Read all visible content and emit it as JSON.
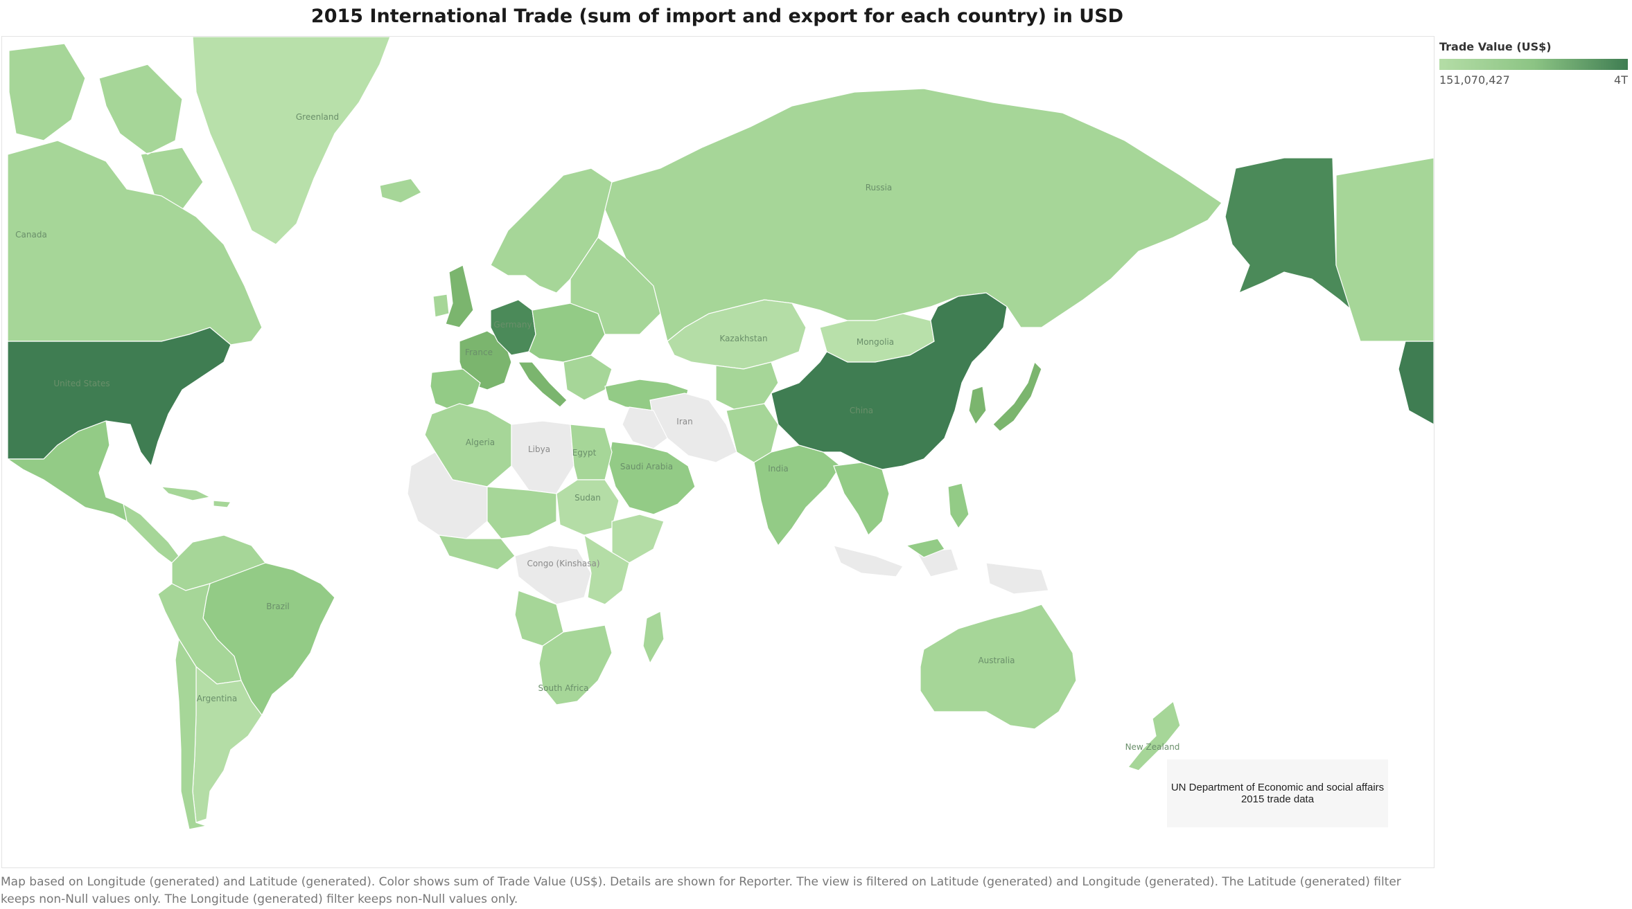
{
  "title": "2015 International Trade (sum of import and export for each country) in USD",
  "legend": {
    "title": "Trade Value (US$)",
    "min_label": "151,070,427",
    "max_label": "4T",
    "color_low": "#b4dda6",
    "color_high": "#3f7d52"
  },
  "colors": {
    "no_data": "#eaeaea",
    "low": "#a6d698",
    "low_mid": "#93cb86",
    "mid": "#7bb56e",
    "high": "#4b8a59",
    "top": "#3f7d52"
  },
  "map_labels": {
    "greenland": "Greenland",
    "canada": "Canada",
    "united_states": "United States",
    "russia": "Russia",
    "kazakhstan": "Kazakhstan",
    "mongolia": "Mongolia",
    "china": "China",
    "iran": "Iran",
    "libya": "Libya",
    "algeria": "Algeria",
    "egypt": "Egypt",
    "sudan": "Sudan",
    "saudi_arabia": "Saudi Arabia",
    "india": "India",
    "congo": "Congo (Kinshasa)",
    "brazil": "Brazil",
    "argentina": "Argentina",
    "australia": "Australia",
    "new_zealand": "New Zealand",
    "south_africa": "South Africa",
    "france": "France",
    "germany": "Germany"
  },
  "source_note": "UN Department of Economic and social affairs 2015 trade data",
  "caption": "Map based on Longitude (generated) and Latitude (generated).  Color shows sum of Trade Value (US$).  Details are shown for Reporter. The view is filtered on Latitude (generated) and Longitude (generated). The Latitude (generated) filter keeps non-Null values only. The Longitude (generated) filter keeps non-Null values only."
}
